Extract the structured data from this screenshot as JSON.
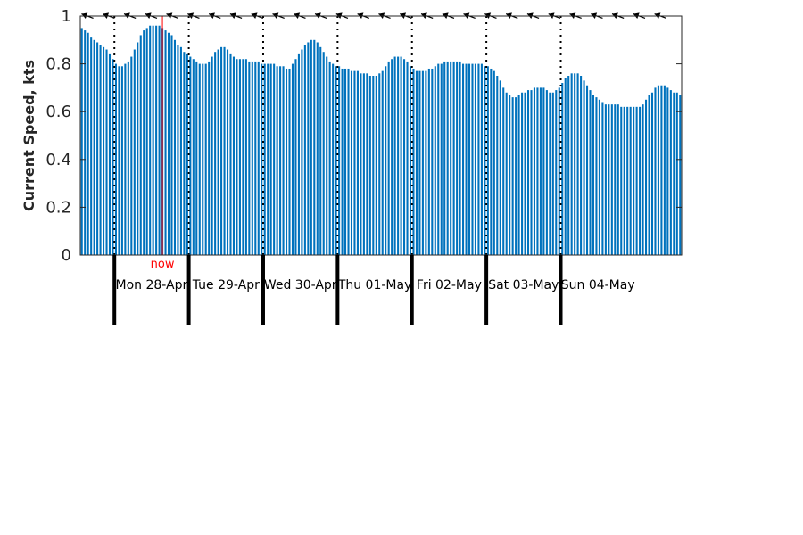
{
  "chart_data": {
    "type": "bar",
    "title": "",
    "xlabel": "",
    "ylabel": "Current Speed, kts",
    "ylim": [
      0,
      1
    ],
    "yticks": [
      "0",
      "0.2",
      "0.4",
      "0.6",
      "0.8",
      "1"
    ],
    "grid": false,
    "x_start": "Mon 28-Apr 00:00 minus 11 h",
    "step_hours": 1,
    "series": [
      {
        "color": "#0072BD",
        "values": [
          0.95,
          0.94,
          0.93,
          0.91,
          0.9,
          0.89,
          0.88,
          0.87,
          0.86,
          0.84,
          0.82,
          0.8,
          0.79,
          0.79,
          0.8,
          0.81,
          0.83,
          0.86,
          0.89,
          0.92,
          0.94,
          0.95,
          0.96,
          0.96,
          0.96,
          0.96,
          0.95,
          0.94,
          0.93,
          0.92,
          0.9,
          0.88,
          0.87,
          0.85,
          0.84,
          0.83,
          0.82,
          0.81,
          0.8,
          0.8,
          0.8,
          0.81,
          0.83,
          0.85,
          0.86,
          0.87,
          0.87,
          0.86,
          0.84,
          0.83,
          0.82,
          0.82,
          0.82,
          0.82,
          0.81,
          0.81,
          0.81,
          0.81,
          0.8,
          0.8,
          0.8,
          0.8,
          0.8,
          0.79,
          0.79,
          0.79,
          0.78,
          0.78,
          0.8,
          0.82,
          0.84,
          0.86,
          0.88,
          0.89,
          0.9,
          0.9,
          0.89,
          0.87,
          0.85,
          0.83,
          0.81,
          0.8,
          0.79,
          0.79,
          0.78,
          0.78,
          0.78,
          0.77,
          0.77,
          0.77,
          0.76,
          0.76,
          0.76,
          0.75,
          0.75,
          0.75,
          0.76,
          0.77,
          0.79,
          0.81,
          0.82,
          0.83,
          0.83,
          0.83,
          0.82,
          0.81,
          0.79,
          0.78,
          0.77,
          0.77,
          0.77,
          0.77,
          0.78,
          0.78,
          0.79,
          0.8,
          0.8,
          0.81,
          0.81,
          0.81,
          0.81,
          0.81,
          0.81,
          0.8,
          0.8,
          0.8,
          0.8,
          0.8,
          0.8,
          0.8,
          0.79,
          0.79,
          0.78,
          0.77,
          0.75,
          0.73,
          0.7,
          0.68,
          0.67,
          0.66,
          0.66,
          0.67,
          0.68,
          0.68,
          0.69,
          0.69,
          0.7,
          0.7,
          0.7,
          0.7,
          0.69,
          0.68,
          0.68,
          0.69,
          0.7,
          0.72,
          0.74,
          0.75,
          0.76,
          0.76,
          0.76,
          0.75,
          0.73,
          0.71,
          0.69,
          0.67,
          0.66,
          0.65,
          0.64,
          0.63,
          0.63,
          0.63,
          0.63,
          0.63,
          0.62,
          0.62,
          0.62,
          0.62,
          0.62,
          0.62,
          0.62,
          0.63,
          0.65,
          0.67,
          0.68,
          0.7,
          0.71,
          0.71,
          0.71,
          0.7,
          0.69,
          0.68,
          0.68,
          0.67
        ]
      }
    ],
    "day_labels": [
      "Mon 28-Apr",
      "Tue 29-Apr",
      "Wed 30-Apr",
      "Thu 01-May",
      "Fri 02-May",
      "Sat 03-May",
      "Sun 04-May"
    ],
    "day_boundary_index": [
      11,
      35,
      59,
      83,
      107,
      131,
      155
    ],
    "now_index": 26,
    "now_label": "now",
    "now_color": "#FF0000",
    "arrow_count": 28,
    "arrow_color": "#000000"
  }
}
